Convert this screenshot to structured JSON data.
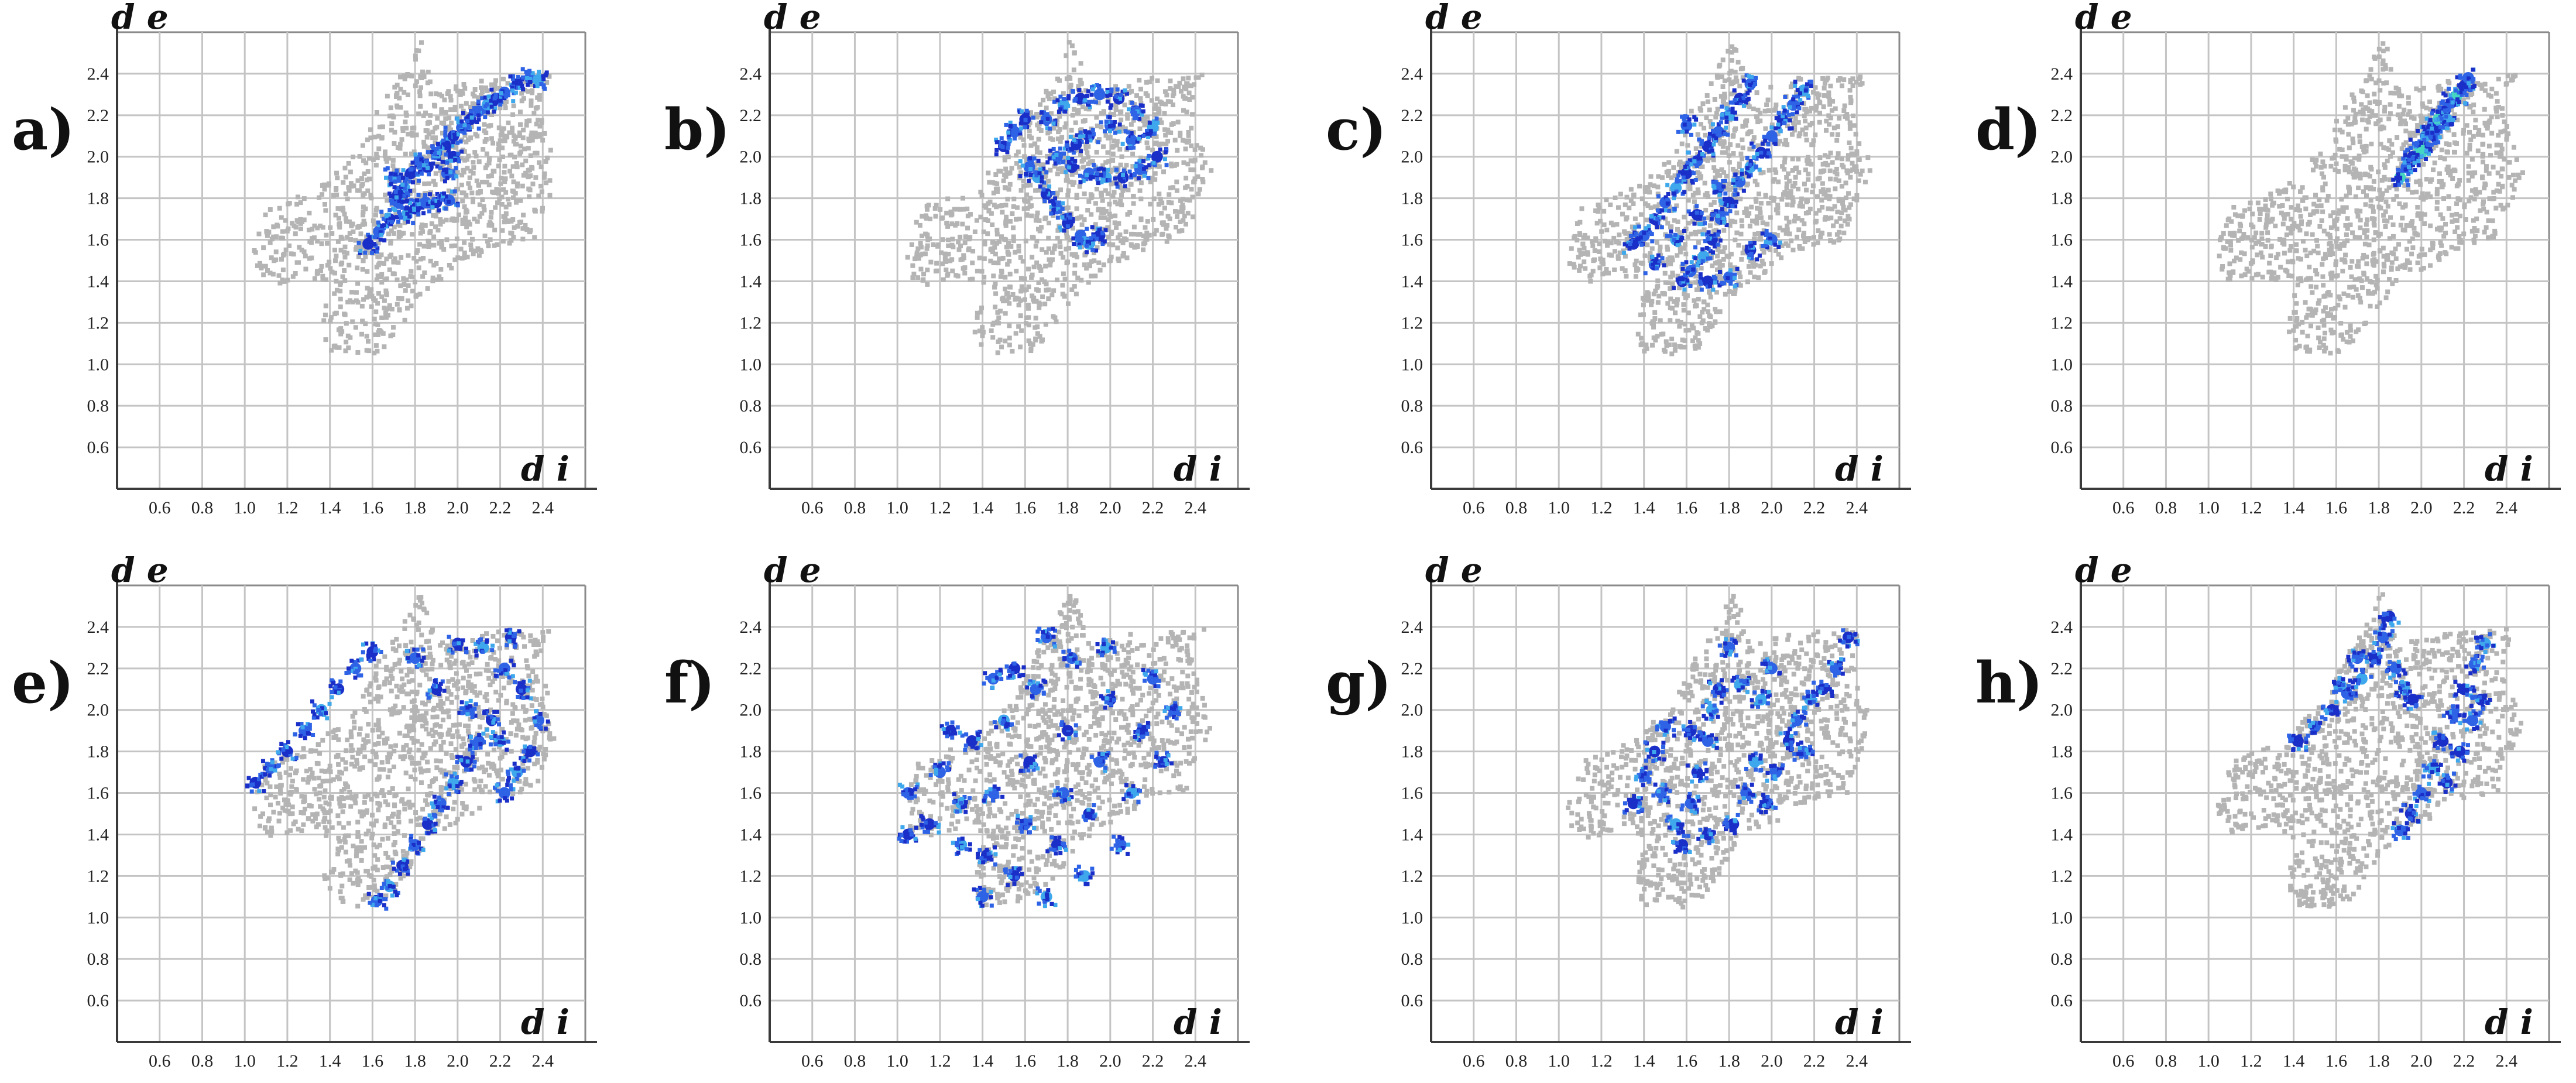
{
  "colors": {
    "background": "#ffffff",
    "grid": "#c4c4c4",
    "gray_cloud": "#b4b4b4",
    "highlight_dark": "#1a2fc8",
    "highlight_mid": "#2f63e6",
    "highlight_light": "#3fa8ec",
    "highlight_cyan": "#44d6c2"
  },
  "chart_data": [
    {
      "panel_label": "a)",
      "type": "scatter",
      "x_axis_label": "d i",
      "y_axis_label": "d e",
      "xlim": [
        0.4,
        2.6
      ],
      "ylim": [
        0.4,
        2.6
      ],
      "x_ticks": [
        "0.6",
        "0.8",
        "1.0",
        "1.2",
        "1.4",
        "1.6",
        "1.8",
        "2.0",
        "2.2",
        "2.4"
      ],
      "y_ticks": [
        "0.6",
        "0.8",
        "1.0",
        "1.2",
        "1.4",
        "1.6",
        "1.8",
        "2.0",
        "2.2",
        "2.4"
      ],
      "highlight_points": [
        [
          1.58,
          1.58
        ],
        [
          1.63,
          1.64
        ],
        [
          1.68,
          1.7
        ],
        [
          1.72,
          1.78
        ],
        [
          1.75,
          1.85
        ],
        [
          1.78,
          1.92
        ],
        [
          1.82,
          1.98
        ],
        [
          1.86,
          1.95
        ],
        [
          1.9,
          2.02
        ],
        [
          1.94,
          2.06
        ],
        [
          1.98,
          2.1
        ],
        [
          2.02,
          2.14
        ],
        [
          2.06,
          2.18
        ],
        [
          2.1,
          2.22
        ],
        [
          2.14,
          2.25
        ],
        [
          2.18,
          2.28
        ],
        [
          2.22,
          2.31
        ],
        [
          2.28,
          2.35
        ],
        [
          2.34,
          2.38
        ],
        [
          2.38,
          2.37
        ],
        [
          1.8,
          1.75
        ],
        [
          1.85,
          1.78
        ],
        [
          1.9,
          1.78
        ],
        [
          1.96,
          1.79
        ],
        [
          1.76,
          1.72
        ],
        [
          1.72,
          1.82
        ],
        [
          1.95,
          1.92
        ],
        [
          1.98,
          2.0
        ],
        [
          1.7,
          1.9
        ]
      ]
    },
    {
      "panel_label": "b)",
      "type": "scatter",
      "x_axis_label": "d i",
      "y_axis_label": "d e",
      "xlim": [
        0.4,
        2.6
      ],
      "ylim": [
        0.4,
        2.6
      ],
      "x_ticks": [
        "0.6",
        "0.8",
        "1.0",
        "1.2",
        "1.4",
        "1.6",
        "1.8",
        "2.0",
        "2.2",
        "2.4"
      ],
      "y_ticks": [
        "0.6",
        "0.8",
        "1.0",
        "1.2",
        "1.4",
        "1.6",
        "1.8",
        "2.0",
        "2.2",
        "2.4"
      ],
      "highlight_points": [
        [
          1.5,
          2.05
        ],
        [
          1.55,
          2.12
        ],
        [
          1.6,
          2.18
        ],
        [
          1.62,
          1.95
        ],
        [
          1.66,
          1.9
        ],
        [
          1.7,
          1.82
        ],
        [
          1.75,
          1.75
        ],
        [
          1.8,
          1.68
        ],
        [
          1.86,
          1.62
        ],
        [
          1.9,
          1.58
        ],
        [
          1.95,
          1.62
        ],
        [
          1.75,
          2.0
        ],
        [
          1.82,
          1.95
        ],
        [
          1.9,
          1.92
        ],
        [
          1.98,
          1.9
        ],
        [
          2.06,
          1.9
        ],
        [
          2.14,
          1.94
        ],
        [
          2.22,
          2.0
        ],
        [
          1.7,
          2.18
        ],
        [
          1.78,
          2.25
        ],
        [
          1.86,
          2.28
        ],
        [
          1.95,
          2.3
        ],
        [
          2.04,
          2.28
        ],
        [
          2.12,
          2.22
        ],
        [
          2.2,
          2.14
        ],
        [
          1.9,
          2.1
        ],
        [
          2.0,
          2.15
        ],
        [
          1.84,
          2.06
        ],
        [
          2.1,
          2.08
        ]
      ]
    },
    {
      "panel_label": "c)",
      "type": "scatter",
      "x_axis_label": "d i",
      "y_axis_label": "d e",
      "xlim": [
        0.4,
        2.6
      ],
      "ylim": [
        0.4,
        2.6
      ],
      "x_ticks": [
        "0.6",
        "0.8",
        "1.0",
        "1.2",
        "1.4",
        "1.6",
        "1.8",
        "2.0",
        "2.2",
        "2.4"
      ],
      "y_ticks": [
        "0.6",
        "0.8",
        "1.0",
        "1.2",
        "1.4",
        "1.6",
        "1.8",
        "2.0",
        "2.2",
        "2.4"
      ],
      "highlight_points": [
        [
          1.35,
          1.58
        ],
        [
          1.4,
          1.62
        ],
        [
          1.45,
          1.7
        ],
        [
          1.5,
          1.78
        ],
        [
          1.55,
          1.85
        ],
        [
          1.6,
          1.92
        ],
        [
          1.65,
          1.98
        ],
        [
          1.7,
          2.05
        ],
        [
          1.75,
          2.12
        ],
        [
          1.8,
          2.2
        ],
        [
          1.85,
          2.28
        ],
        [
          1.9,
          2.35
        ],
        [
          1.58,
          1.4
        ],
        [
          1.62,
          1.45
        ],
        [
          1.68,
          1.52
        ],
        [
          1.72,
          1.6
        ],
        [
          1.76,
          1.7
        ],
        [
          1.8,
          1.78
        ],
        [
          1.85,
          1.88
        ],
        [
          1.9,
          1.95
        ],
        [
          1.95,
          2.02
        ],
        [
          2.0,
          2.1
        ],
        [
          2.05,
          2.18
        ],
        [
          2.1,
          2.25
        ],
        [
          2.15,
          2.32
        ],
        [
          1.7,
          1.4
        ],
        [
          1.8,
          1.42
        ],
        [
          1.9,
          1.55
        ],
        [
          2.0,
          1.6
        ],
        [
          1.55,
          1.6
        ],
        [
          1.65,
          1.72
        ],
        [
          1.75,
          1.85
        ],
        [
          1.45,
          1.48
        ],
        [
          1.6,
          2.15
        ]
      ]
    },
    {
      "panel_label": "d)",
      "type": "scatter",
      "x_axis_label": "d i",
      "y_axis_label": "d e",
      "xlim": [
        0.4,
        2.6
      ],
      "ylim": [
        0.4,
        2.6
      ],
      "x_ticks": [
        "0.6",
        "0.8",
        "1.0",
        "1.2",
        "1.4",
        "1.6",
        "1.8",
        "2.0",
        "2.2",
        "2.4"
      ],
      "y_ticks": [
        "0.6",
        "0.8",
        "1.0",
        "1.2",
        "1.4",
        "1.6",
        "1.8",
        "2.0",
        "2.2",
        "2.4"
      ],
      "highlight_points": [
        [
          1.9,
          1.9
        ],
        [
          1.93,
          1.95
        ],
        [
          1.96,
          2.0
        ],
        [
          1.99,
          2.05
        ],
        [
          2.02,
          2.1
        ],
        [
          2.05,
          2.14
        ],
        [
          2.08,
          2.18
        ],
        [
          2.11,
          2.22
        ],
        [
          2.14,
          2.26
        ],
        [
          2.17,
          2.3
        ],
        [
          2.2,
          2.34
        ],
        [
          2.22,
          2.38
        ],
        [
          2.0,
          2.02
        ],
        [
          2.06,
          2.1
        ],
        [
          2.12,
          2.18
        ]
      ]
    },
    {
      "panel_label": "e)",
      "type": "scatter",
      "x_axis_label": "d i",
      "y_axis_label": "d e",
      "xlim": [
        0.4,
        2.6
      ],
      "ylim": [
        0.4,
        2.6
      ],
      "x_ticks": [
        "0.6",
        "0.8",
        "1.0",
        "1.2",
        "1.4",
        "1.6",
        "1.8",
        "2.0",
        "2.2",
        "2.4"
      ],
      "y_ticks": [
        "0.6",
        "0.8",
        "1.0",
        "1.2",
        "1.4",
        "1.6",
        "1.8",
        "2.0",
        "2.2",
        "2.4"
      ],
      "highlight_points": [
        [
          1.05,
          1.65
        ],
        [
          1.12,
          1.72
        ],
        [
          1.2,
          1.8
        ],
        [
          1.28,
          1.9
        ],
        [
          1.36,
          2.0
        ],
        [
          1.44,
          2.1
        ],
        [
          1.52,
          2.2
        ],
        [
          1.6,
          2.28
        ],
        [
          1.62,
          1.08
        ],
        [
          1.68,
          1.15
        ],
        [
          1.74,
          1.25
        ],
        [
          1.8,
          1.35
        ],
        [
          1.86,
          1.45
        ],
        [
          1.92,
          1.55
        ],
        [
          1.98,
          1.65
        ],
        [
          2.04,
          1.75
        ],
        [
          2.1,
          1.85
        ],
        [
          2.16,
          1.95
        ],
        [
          2.22,
          1.6
        ],
        [
          2.28,
          1.7
        ],
        [
          2.34,
          1.8
        ],
        [
          2.38,
          1.95
        ],
        [
          2.3,
          2.1
        ],
        [
          2.22,
          2.2
        ],
        [
          2.12,
          2.3
        ],
        [
          2.0,
          2.32
        ],
        [
          1.8,
          2.25
        ],
        [
          1.9,
          2.1
        ],
        [
          2.05,
          2.0
        ],
        [
          2.2,
          1.85
        ],
        [
          2.25,
          2.35
        ]
      ]
    },
    {
      "panel_label": "f)",
      "type": "scatter",
      "x_axis_label": "d i",
      "y_axis_label": "d e",
      "xlim": [
        0.4,
        2.6
      ],
      "ylim": [
        0.4,
        2.6
      ],
      "x_ticks": [
        "0.6",
        "0.8",
        "1.0",
        "1.2",
        "1.4",
        "1.6",
        "1.8",
        "2.0",
        "2.2",
        "2.4"
      ],
      "y_ticks": [
        "0.6",
        "0.8",
        "1.0",
        "1.2",
        "1.4",
        "1.6",
        "1.8",
        "2.0",
        "2.2",
        "2.4"
      ],
      "highlight_points": [
        [
          1.05,
          1.4
        ],
        [
          1.05,
          1.6
        ],
        [
          1.15,
          1.45
        ],
        [
          1.2,
          1.7
        ],
        [
          1.3,
          1.55
        ],
        [
          1.35,
          1.85
        ],
        [
          1.4,
          1.1
        ],
        [
          1.42,
          1.3
        ],
        [
          1.45,
          1.6
        ],
        [
          1.5,
          1.95
        ],
        [
          1.55,
          1.2
        ],
        [
          1.6,
          1.45
        ],
        [
          1.62,
          1.75
        ],
        [
          1.65,
          2.1
        ],
        [
          1.7,
          1.1
        ],
        [
          1.75,
          1.35
        ],
        [
          1.78,
          1.6
        ],
        [
          1.8,
          1.9
        ],
        [
          1.82,
          2.25
        ],
        [
          1.88,
          1.2
        ],
        [
          1.9,
          1.5
        ],
        [
          1.95,
          1.75
        ],
        [
          2.0,
          2.05
        ],
        [
          2.05,
          1.35
        ],
        [
          2.1,
          1.6
        ],
        [
          2.15,
          1.9
        ],
        [
          2.2,
          2.15
        ],
        [
          2.25,
          1.75
        ],
        [
          2.3,
          2.0
        ],
        [
          1.3,
          1.35
        ],
        [
          1.55,
          2.2
        ],
        [
          1.7,
          2.35
        ],
        [
          1.25,
          1.9
        ],
        [
          1.45,
          2.15
        ],
        [
          1.98,
          2.3
        ]
      ]
    },
    {
      "panel_label": "g)",
      "type": "scatter",
      "x_axis_label": "d i",
      "y_axis_label": "d e",
      "xlim": [
        0.4,
        2.6
      ],
      "ylim": [
        0.4,
        2.6
      ],
      "x_ticks": [
        "0.6",
        "0.8",
        "1.0",
        "1.2",
        "1.4",
        "1.6",
        "1.8",
        "2.0",
        "2.2",
        "2.4"
      ],
      "y_ticks": [
        "0.6",
        "0.8",
        "1.0",
        "1.2",
        "1.4",
        "1.6",
        "1.8",
        "2.0",
        "2.2",
        "2.4"
      ],
      "highlight_points": [
        [
          1.35,
          1.55
        ],
        [
          1.4,
          1.68
        ],
        [
          1.45,
          1.8
        ],
        [
          1.5,
          1.92
        ],
        [
          1.55,
          1.45
        ],
        [
          1.58,
          1.35
        ],
        [
          1.62,
          1.55
        ],
        [
          1.65,
          1.7
        ],
        [
          1.7,
          1.85
        ],
        [
          1.72,
          2.0
        ],
        [
          1.75,
          2.1
        ],
        [
          1.8,
          2.3
        ],
        [
          1.82,
          1.45
        ],
        [
          1.88,
          1.6
        ],
        [
          1.92,
          1.75
        ],
        [
          1.98,
          1.55
        ],
        [
          2.02,
          1.7
        ],
        [
          2.08,
          1.85
        ],
        [
          2.12,
          1.95
        ],
        [
          2.18,
          2.05
        ],
        [
          2.24,
          2.1
        ],
        [
          2.3,
          2.2
        ],
        [
          2.36,
          2.35
        ],
        [
          2.0,
          2.2
        ],
        [
          1.95,
          2.05
        ],
        [
          1.62,
          1.9
        ],
        [
          1.48,
          1.6
        ],
        [
          1.7,
          1.4
        ],
        [
          2.15,
          1.8
        ],
        [
          1.85,
          2.12
        ]
      ]
    },
    {
      "panel_label": "h)",
      "type": "scatter",
      "x_axis_label": "d i",
      "y_axis_label": "d e",
      "xlim": [
        0.4,
        2.6
      ],
      "ylim": [
        0.4,
        2.6
      ],
      "x_ticks": [
        "0.6",
        "0.8",
        "1.0",
        "1.2",
        "1.4",
        "1.6",
        "1.8",
        "2.0",
        "2.2",
        "2.4"
      ],
      "y_ticks": [
        "0.6",
        "0.8",
        "1.0",
        "1.2",
        "1.4",
        "1.6",
        "1.8",
        "2.0",
        "2.2",
        "2.4"
      ],
      "highlight_points": [
        [
          1.42,
          1.85
        ],
        [
          1.5,
          1.92
        ],
        [
          1.58,
          2.0
        ],
        [
          1.65,
          2.08
        ],
        [
          1.72,
          2.15
        ],
        [
          1.78,
          2.25
        ],
        [
          1.82,
          2.35
        ],
        [
          1.85,
          2.45
        ],
        [
          1.88,
          2.2
        ],
        [
          1.92,
          2.1
        ],
        [
          1.96,
          2.05
        ],
        [
          1.9,
          1.42
        ],
        [
          1.95,
          1.5
        ],
        [
          2.0,
          1.6
        ],
        [
          2.05,
          1.72
        ],
        [
          2.1,
          1.85
        ],
        [
          2.15,
          1.98
        ],
        [
          2.2,
          2.1
        ],
        [
          2.25,
          2.22
        ],
        [
          2.3,
          2.32
        ],
        [
          2.18,
          1.8
        ],
        [
          2.24,
          1.95
        ],
        [
          2.12,
          1.65
        ],
        [
          1.7,
          2.25
        ],
        [
          1.62,
          2.12
        ],
        [
          2.28,
          2.05
        ]
      ]
    }
  ]
}
